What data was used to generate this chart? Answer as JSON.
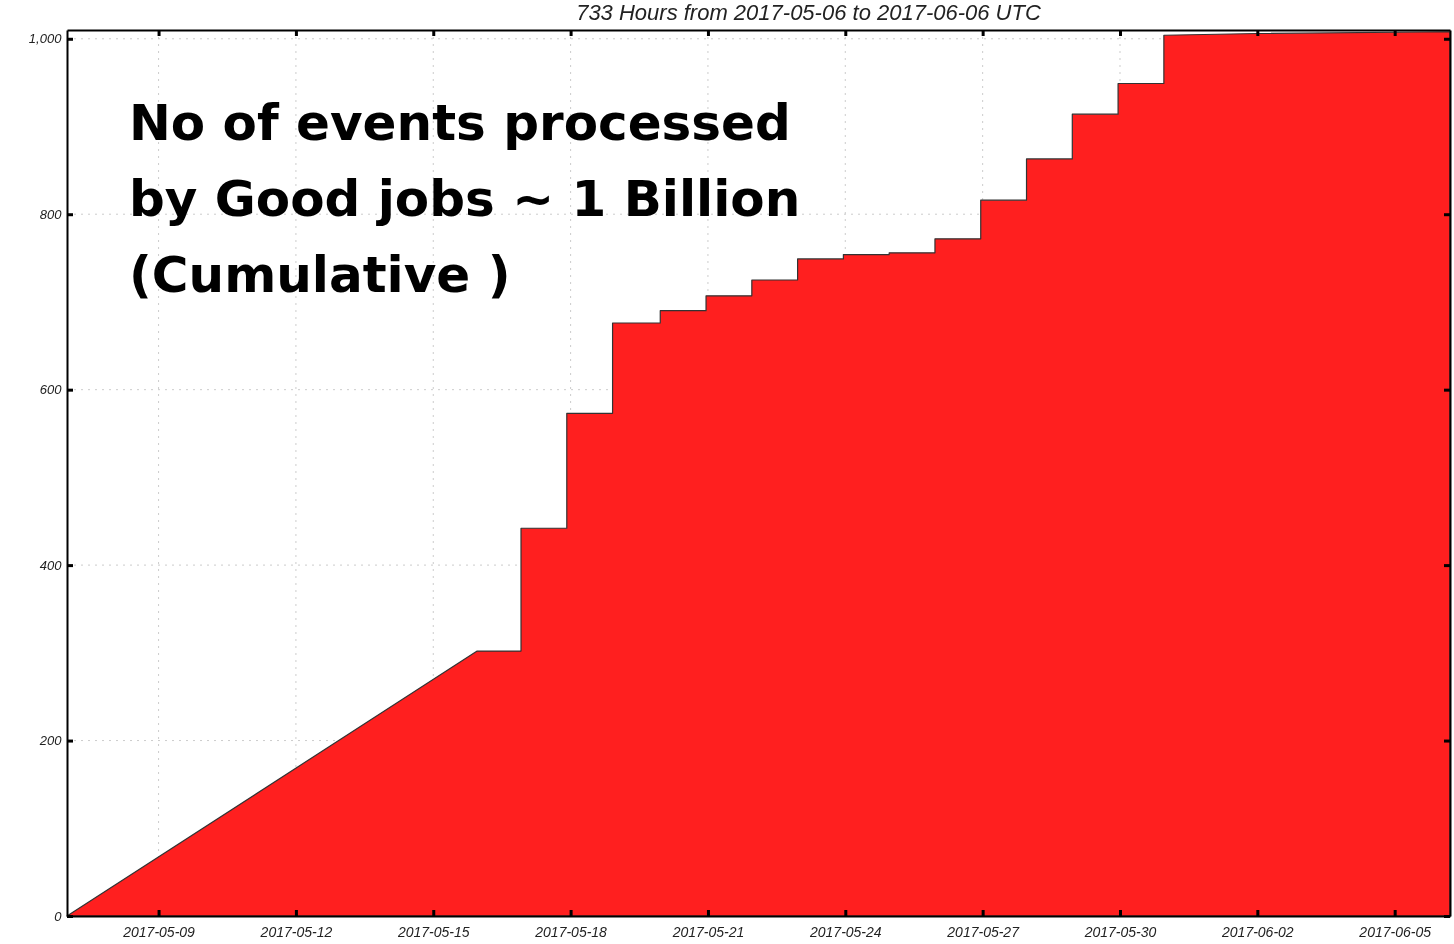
{
  "chart_data": {
    "type": "area",
    "title": "733 Hours from 2017-05-06 to 2017-06-06 UTC",
    "x": [
      "2017-05-07T00:00",
      "2017-05-15T23:00",
      "2017-05-16T22:00",
      "2017-05-16T22:00",
      "2017-05-17T22:00",
      "2017-05-17T22:00",
      "2017-05-18T22:00",
      "2017-05-18T22:00",
      "2017-05-19T23:00",
      "2017-05-19T23:00",
      "2017-05-20T23:00",
      "2017-05-20T23:00",
      "2017-05-21T23:00",
      "2017-05-21T23:00",
      "2017-05-22T23:00",
      "2017-05-22T23:00",
      "2017-05-23T23:00",
      "2017-05-23T23:00",
      "2017-05-24T23:00",
      "2017-05-24T23:00",
      "2017-05-25T23:00",
      "2017-05-25T23:00",
      "2017-05-26T23:00",
      "2017-05-26T23:00",
      "2017-05-27T23:00",
      "2017-05-27T23:00",
      "2017-05-28T23:00",
      "2017-05-28T23:00",
      "2017-05-29T23:00",
      "2017-05-29T23:00",
      "2017-05-30T23:00",
      "2017-05-30T23:00",
      "2017-06-02T00:00",
      "2017-06-06T05:00"
    ],
    "series": [
      {
        "color": "#ff1f1f",
        "values": [
          0,
          302,
          302,
          442,
          442,
          573,
          573,
          676,
          676,
          690,
          690,
          707,
          707,
          725,
          725,
          749,
          749,
          754,
          754,
          756,
          756,
          772,
          772,
          816,
          816,
          863,
          863,
          914,
          914,
          949,
          949,
          1004,
          1006,
          1008
        ]
      }
    ],
    "xlim": [
      "2017-05-07T00:00",
      "2017-06-06T05:00"
    ],
    "xticks": [
      {
        "value": "2017-05-09",
        "label": "2017-05-09"
      },
      {
        "value": "2017-05-12",
        "label": "2017-05-12"
      },
      {
        "value": "2017-05-15",
        "label": "2017-05-15"
      },
      {
        "value": "2017-05-18",
        "label": "2017-05-18"
      },
      {
        "value": "2017-05-21",
        "label": "2017-05-21"
      },
      {
        "value": "2017-05-24",
        "label": "2017-05-24"
      },
      {
        "value": "2017-05-27",
        "label": "2017-05-27"
      },
      {
        "value": "2017-05-30",
        "label": "2017-05-30"
      },
      {
        "value": "2017-06-02",
        "label": "2017-06-02"
      },
      {
        "value": "2017-06-05",
        "label": "2017-06-05"
      }
    ],
    "ylim": [
      0,
      1010
    ],
    "yticks": [
      0,
      200,
      400,
      600,
      800,
      {
        "value": 1000,
        "label": "1,000"
      }
    ],
    "grid": true,
    "annotations": [
      "No of events processed\nby Good jobs ~ 1 Billion\n(Cumulative )"
    ]
  }
}
